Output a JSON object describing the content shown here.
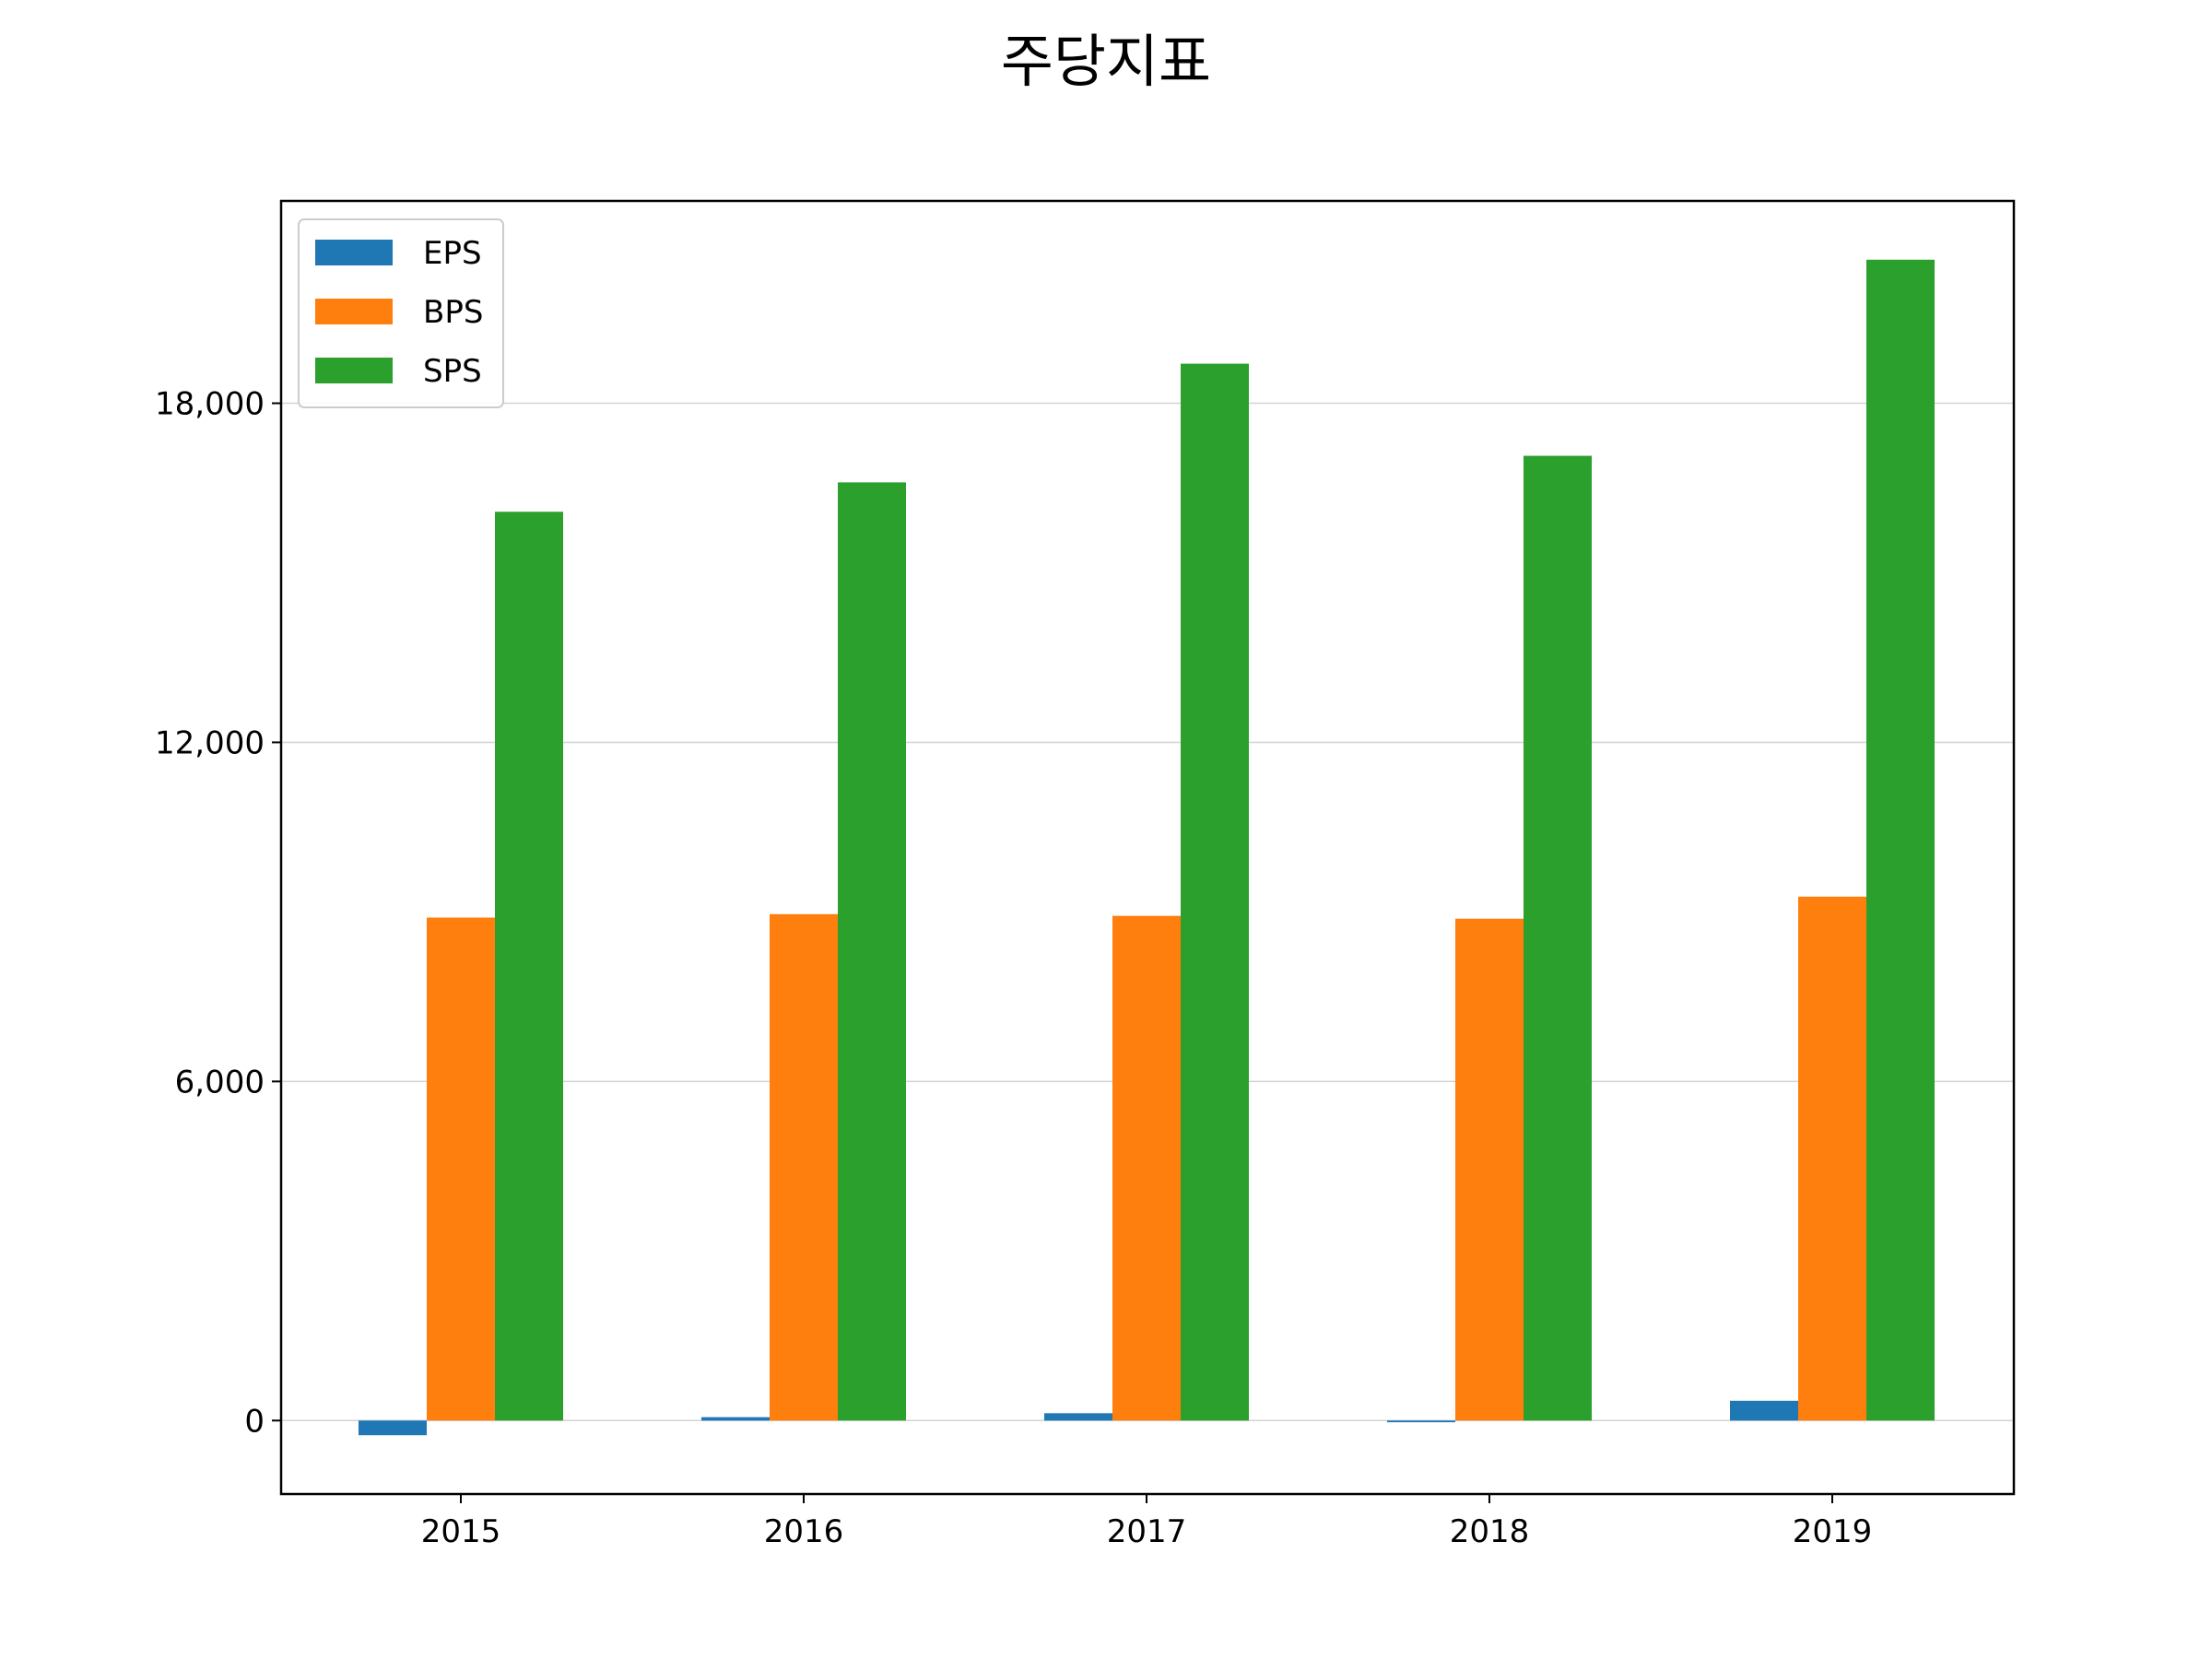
{
  "chart_data": {
    "type": "bar",
    "title": "주당지표",
    "xlabel": "",
    "ylabel": "",
    "categories": [
      "2015",
      "2016",
      "2017",
      "2018",
      "2019"
    ],
    "series": [
      {
        "name": "EPS",
        "color": "#1f77b4",
        "values": [
          -260,
          60,
          130,
          -30,
          350
        ]
      },
      {
        "name": "BPS",
        "color": "#ff7f0e",
        "values": [
          8900,
          8960,
          8930,
          8880,
          9270
        ]
      },
      {
        "name": "SPS",
        "color": "#2ca02c",
        "values": [
          16080,
          16600,
          18700,
          17070,
          20540
        ]
      }
    ],
    "ylim": [
      -1300,
      21580
    ],
    "yticks": [
      0,
      6000,
      12000,
      18000
    ],
    "ytick_labels": [
      "0",
      "6,000",
      "12,000",
      "18,000"
    ],
    "grid": "y",
    "legend_position": "top-left"
  }
}
